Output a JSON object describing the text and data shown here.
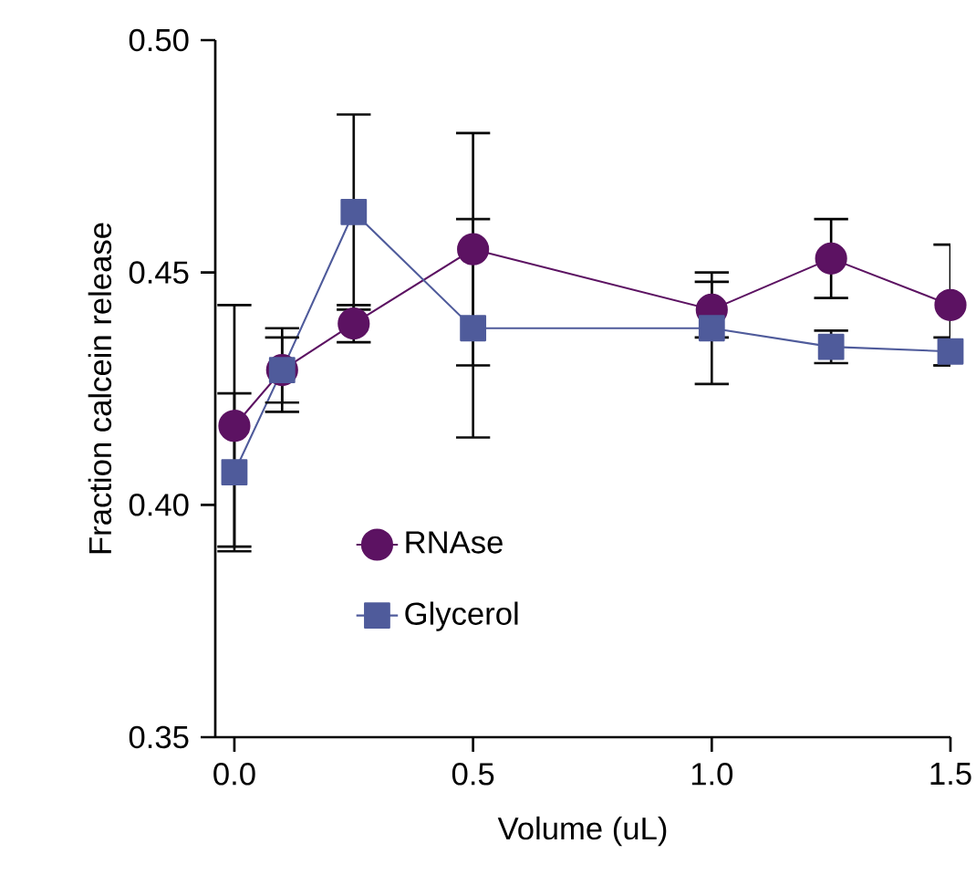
{
  "chart_data": {
    "type": "line",
    "xlabel": "Volume (uL)",
    "ylabel": "Fraction calcein release",
    "x": [
      0,
      0.1,
      0.25,
      0.5,
      1.0,
      1.25,
      1.5
    ],
    "series": [
      {
        "name": "RNAse",
        "color": "#5c1262",
        "marker": "circle",
        "values": [
          0.417,
          0.429,
          0.439,
          0.455,
          0.442,
          0.453,
          0.443
        ],
        "errors": [
          0.026,
          0.009,
          0.004,
          0.025,
          0.006,
          0.0085,
          0.013
        ]
      },
      {
        "name": "Glycerol",
        "color": "#4f5b9b",
        "marker": "square",
        "values": [
          0.407,
          0.429,
          0.463,
          0.438,
          0.438,
          0.434,
          0.433
        ],
        "errors": [
          0.017,
          0.007,
          0.021,
          0.0235,
          0.012,
          0.0035,
          0.003
        ]
      }
    ],
    "xlim": [
      -0.04,
      1.5
    ],
    "ylim": [
      0.35,
      0.5
    ],
    "xticks": [
      {
        "value": 0,
        "label": "0.0"
      },
      {
        "value": 0.5,
        "label": "0.5"
      },
      {
        "value": 1.0,
        "label": "1.0"
      },
      {
        "value": 1.5,
        "label": "1.5"
      }
    ],
    "yticks": [
      {
        "value": 0.35,
        "label": "0.35"
      },
      {
        "value": 0.4,
        "label": "0.40"
      },
      {
        "value": 0.45,
        "label": "0.45"
      },
      {
        "value": 0.5,
        "label": "0.50"
      }
    ],
    "grid": false,
    "legend": "bottom left",
    "line_style": "solid"
  }
}
